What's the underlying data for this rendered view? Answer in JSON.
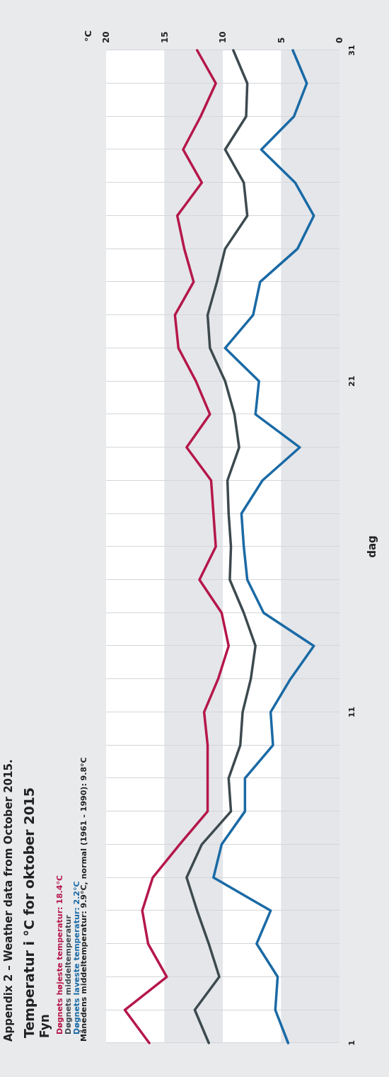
{
  "chart_data": {
    "type": "line",
    "title": "Temperatur i °C for oktober 2015",
    "subtitle": "Fyn",
    "ylabel": "dag",
    "orientation": "horizontal",
    "categories": [
      "31",
      null,
      null,
      null,
      null,
      null,
      null,
      null,
      null,
      null,
      "21",
      null,
      null,
      null,
      null,
      null,
      null,
      null,
      null,
      null,
      "11",
      null,
      null,
      null,
      null,
      null,
      null,
      null,
      null,
      null,
      "1"
    ],
    "series": [
      {
        "name": "Døgnets højeste temperatur: 18.4°C",
        "color": "#b5174a",
        "values": [
          12.2,
          10.6,
          11.9,
          13.4,
          11.8,
          13.9,
          13.3,
          12.5,
          14.1,
          13.8,
          12.3,
          11.1,
          13.1,
          11.0,
          10.8,
          10.6,
          12.0,
          10.1,
          9.5,
          10.4,
          11.6,
          11.3,
          11.3,
          11.3,
          13.7,
          16.0,
          16.9,
          16.4,
          14.8,
          18.4,
          16.3
        ]
      },
      {
        "name": "Døgnets middeltemperatur",
        "color": "#3d4a4f",
        "values": [
          9.1,
          7.9,
          8.0,
          9.8,
          8.2,
          7.9,
          9.8,
          10.5,
          11.3,
          11.1,
          9.8,
          9.0,
          8.6,
          9.6,
          9.5,
          9.3,
          9.4,
          8.2,
          7.2,
          7.6,
          8.3,
          8.5,
          9.5,
          9.3,
          11.8,
          13.1,
          12.2,
          11.2,
          10.3,
          12.4,
          11.2
        ]
      },
      {
        "name": "Døgnets laveste temperatur: 2.2°C",
        "color": "#1a6aa5",
        "values": [
          4.0,
          2.8,
          3.9,
          6.7,
          3.8,
          2.2,
          3.6,
          6.8,
          7.4,
          9.8,
          6.9,
          7.2,
          3.4,
          6.6,
          8.4,
          8.2,
          7.9,
          6.5,
          2.2,
          4.2,
          5.9,
          5.7,
          8.1,
          8.1,
          10.1,
          10.8,
          5.9,
          7.1,
          5.3,
          5.5,
          4.4
        ]
      }
    ],
    "xlim": [
      20,
      0
    ],
    "xticks": [
      20,
      15,
      10,
      5,
      0
    ],
    "grid": true,
    "legend": "bottom left",
    "marker": "none",
    "line_style": "solid",
    "annotations": [
      "Appendix 2 – Weather data from October 2015.",
      "Månedens middeltemperatur: 9.9°C, normal (1961 - 1990): 9.8°C",
      "°C"
    ]
  }
}
